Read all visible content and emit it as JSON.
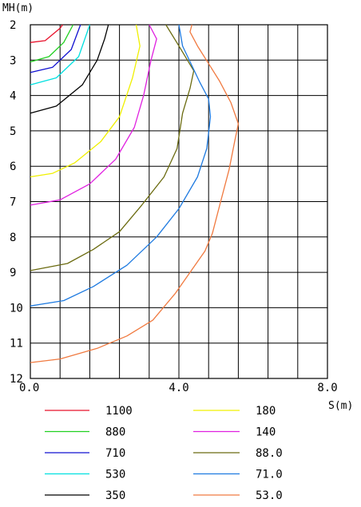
{
  "chart_data": {
    "type": "line",
    "subtype": "contour",
    "title": "",
    "xlabel": "S(m)",
    "ylabel": "MH(m)",
    "xlim": [
      0,
      8
    ],
    "ylim": [
      2,
      12
    ],
    "y_axis_inverted": true,
    "grid": true,
    "x_tick_labels": [
      {
        "value": 0,
        "label": "0.0"
      },
      {
        "value": 4,
        "label": "4.0"
      },
      {
        "value": 8,
        "label": "8.0"
      }
    ],
    "y_tick_labels": [
      {
        "value": 2,
        "label": "2"
      },
      {
        "value": 3,
        "label": "3"
      },
      {
        "value": 4,
        "label": "4"
      },
      {
        "value": 5,
        "label": "5"
      },
      {
        "value": 6,
        "label": "6"
      },
      {
        "value": 7,
        "label": "7"
      },
      {
        "value": 8,
        "label": "8"
      },
      {
        "value": 9,
        "label": "9"
      },
      {
        "value": 10,
        "label": "10"
      },
      {
        "value": 11,
        "label": "11"
      },
      {
        "value": 12,
        "label": "12"
      }
    ],
    "legend_placement": "bottom",
    "series": [
      {
        "name": "1100",
        "color": "#e8102a",
        "points": [
          [
            0,
            2.5
          ],
          [
            0.4,
            2.45
          ],
          [
            0.8,
            2.1
          ],
          [
            0.87,
            2.0
          ]
        ]
      },
      {
        "name": "880",
        "color": "#20d020",
        "points": [
          [
            0,
            3.05
          ],
          [
            0.5,
            2.9
          ],
          [
            0.9,
            2.5
          ],
          [
            1.15,
            2.0
          ]
        ]
      },
      {
        "name": "710",
        "color": "#1010d0",
        "points": [
          [
            0,
            3.35
          ],
          [
            0.6,
            3.2
          ],
          [
            1.1,
            2.7
          ],
          [
            1.35,
            2.0
          ]
        ]
      },
      {
        "name": "530",
        "color": "#00e0e0",
        "points": [
          [
            0,
            3.7
          ],
          [
            0.7,
            3.5
          ],
          [
            1.3,
            2.9
          ],
          [
            1.6,
            2.0
          ]
        ]
      },
      {
        "name": "350",
        "color": "#000000",
        "points": [
          [
            0,
            4.5
          ],
          [
            0.7,
            4.3
          ],
          [
            1.4,
            3.7
          ],
          [
            1.8,
            3.0
          ],
          [
            2.0,
            2.4
          ],
          [
            2.1,
            2.0
          ]
        ]
      },
      {
        "name": "180",
        "color": "#f0f000",
        "points": [
          [
            0,
            6.3
          ],
          [
            0.6,
            6.2
          ],
          [
            1.2,
            5.9
          ],
          [
            1.9,
            5.3
          ],
          [
            2.4,
            4.6
          ],
          [
            2.75,
            3.5
          ],
          [
            2.95,
            2.6
          ],
          [
            2.85,
            2.0
          ]
        ]
      },
      {
        "name": "140",
        "color": "#e020e0",
        "points": [
          [
            0,
            7.1
          ],
          [
            0.8,
            6.95
          ],
          [
            1.6,
            6.5
          ],
          [
            2.3,
            5.8
          ],
          [
            2.8,
            4.9
          ],
          [
            3.05,
            4.0
          ],
          [
            3.25,
            3.0
          ],
          [
            3.4,
            2.4
          ],
          [
            3.2,
            2.0
          ]
        ]
      },
      {
        "name": "88.0",
        "color": "#6b6b10",
        "points": [
          [
            0,
            8.95
          ],
          [
            1.0,
            8.75
          ],
          [
            1.7,
            8.35
          ],
          [
            2.4,
            7.85
          ],
          [
            3.0,
            7.1
          ],
          [
            3.6,
            6.3
          ],
          [
            3.95,
            5.5
          ],
          [
            4.1,
            4.5
          ],
          [
            4.3,
            3.8
          ],
          [
            4.4,
            3.3
          ],
          [
            4.0,
            2.6
          ],
          [
            3.65,
            2.0
          ]
        ]
      },
      {
        "name": "71.0",
        "color": "#1e7ae0",
        "points": [
          [
            0,
            9.95
          ],
          [
            0.9,
            9.8
          ],
          [
            1.7,
            9.4
          ],
          [
            2.6,
            8.8
          ],
          [
            3.4,
            8.0
          ],
          [
            4.0,
            7.2
          ],
          [
            4.5,
            6.3
          ],
          [
            4.75,
            5.5
          ],
          [
            4.85,
            4.6
          ],
          [
            4.8,
            4.1
          ],
          [
            4.55,
            3.6
          ],
          [
            4.1,
            2.6
          ],
          [
            4.0,
            2.0
          ]
        ]
      },
      {
        "name": "53.0",
        "color": "#f07a40",
        "points": [
          [
            0,
            11.55
          ],
          [
            0.8,
            11.45
          ],
          [
            1.8,
            11.15
          ],
          [
            2.6,
            10.8
          ],
          [
            3.3,
            10.35
          ],
          [
            3.9,
            9.6
          ],
          [
            4.4,
            8.85
          ],
          [
            4.7,
            8.4
          ],
          [
            4.9,
            7.9
          ],
          [
            5.1,
            7.1
          ],
          [
            5.35,
            6.1
          ],
          [
            5.5,
            5.3
          ],
          [
            5.6,
            4.8
          ],
          [
            5.4,
            4.2
          ],
          [
            5.1,
            3.6
          ],
          [
            4.8,
            3.1
          ],
          [
            4.5,
            2.6
          ],
          [
            4.3,
            2.2
          ],
          [
            4.35,
            2.0
          ]
        ]
      }
    ]
  },
  "legend": {
    "left_column": [
      "1100",
      "880",
      "710",
      "530",
      "350"
    ],
    "right_column": [
      "180",
      "140",
      "88.0",
      "71.0",
      "53.0"
    ]
  }
}
